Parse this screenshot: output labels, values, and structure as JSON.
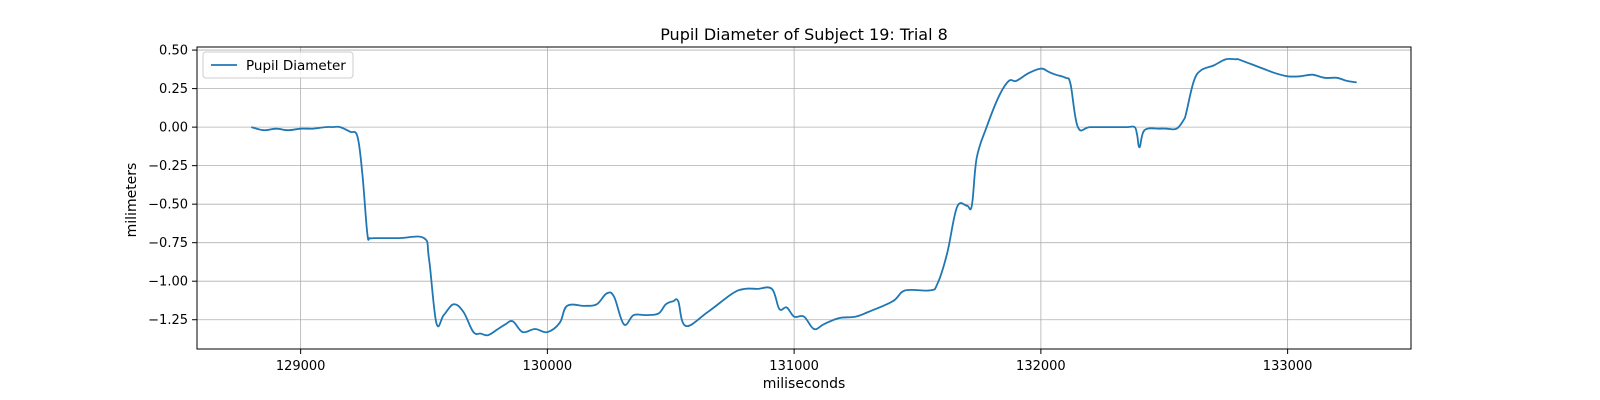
{
  "chart_data": {
    "type": "line",
    "title": "Pupil Diameter of Subject 19: Trial 8",
    "xlabel": "miliseconds",
    "ylabel": "milimeters",
    "xlim": [
      128580,
      133500
    ],
    "ylim": [
      -1.44,
      0.52
    ],
    "xticks": [
      129000,
      130000,
      131000,
      132000,
      133000
    ],
    "xtick_labels": [
      "129000",
      "130000",
      "131000",
      "132000",
      "133000"
    ],
    "yticks": [
      0.5,
      0.25,
      0.0,
      -0.25,
      -0.5,
      -0.75,
      -1.0,
      -1.25
    ],
    "ytick_labels": [
      "0.50",
      "0.25",
      "0.00",
      "−0.25",
      "−0.50",
      "−0.75",
      "−1.00",
      "−1.25"
    ],
    "grid": true,
    "legend_placement": "top-left",
    "series": [
      {
        "name": "Pupil Diameter",
        "color": "#1f77b4",
        "x": [
          128800,
          128850,
          128900,
          128950,
          129000,
          129050,
          129100,
          129130,
          129160,
          129200,
          129230,
          129250,
          129270,
          129280,
          129300,
          129400,
          129500,
          129520,
          129550,
          129580,
          129620,
          129660,
          129700,
          129730,
          129760,
          129800,
          129830,
          129860,
          129900,
          129950,
          130000,
          130050,
          130080,
          130150,
          130200,
          130240,
          130270,
          130310,
          130350,
          130400,
          130450,
          130480,
          130510,
          130530,
          130560,
          130650,
          130750,
          130800,
          130850,
          130910,
          130940,
          130970,
          131000,
          131040,
          131080,
          131120,
          131180,
          131250,
          131300,
          131400,
          131450,
          131550,
          131580,
          131620,
          131660,
          131700,
          131720,
          131740,
          131780,
          131830,
          131870,
          131900,
          131950,
          132000,
          132030,
          132060,
          132100,
          132120,
          132150,
          132200,
          132300,
          132350,
          132380,
          132390,
          132400,
          132420,
          132480,
          132510,
          132550,
          132580,
          132590,
          132620,
          132650,
          132700,
          132750,
          132790,
          132800,
          132850,
          132900,
          132950,
          133000,
          133050,
          133100,
          133150,
          133200,
          133240,
          133280
        ],
        "y": [
          0.0,
          -0.02,
          -0.01,
          -0.02,
          -0.01,
          -0.01,
          0.0,
          0.0,
          0.0,
          -0.03,
          -0.06,
          -0.3,
          -0.69,
          -0.72,
          -0.72,
          -0.72,
          -0.72,
          -0.85,
          -1.27,
          -1.22,
          -1.15,
          -1.2,
          -1.33,
          -1.34,
          -1.35,
          -1.31,
          -1.28,
          -1.26,
          -1.33,
          -1.31,
          -1.33,
          -1.27,
          -1.16,
          -1.16,
          -1.15,
          -1.08,
          -1.1,
          -1.28,
          -1.22,
          -1.22,
          -1.21,
          -1.15,
          -1.13,
          -1.13,
          -1.29,
          -1.2,
          -1.08,
          -1.05,
          -1.05,
          -1.05,
          -1.18,
          -1.17,
          -1.23,
          -1.23,
          -1.31,
          -1.28,
          -1.24,
          -1.23,
          -1.2,
          -1.13,
          -1.06,
          -1.06,
          -1.02,
          -0.82,
          -0.52,
          -0.51,
          -0.51,
          -0.2,
          0.0,
          0.2,
          0.3,
          0.3,
          0.35,
          0.38,
          0.36,
          0.34,
          0.32,
          0.28,
          0.0,
          0.0,
          0.0,
          0.0,
          0.0,
          -0.05,
          -0.13,
          -0.02,
          -0.01,
          -0.01,
          -0.01,
          0.05,
          0.1,
          0.3,
          0.37,
          0.4,
          0.44,
          0.44,
          0.44,
          0.41,
          0.38,
          0.35,
          0.33,
          0.33,
          0.34,
          0.32,
          0.32,
          0.3,
          0.29
        ]
      }
    ]
  }
}
